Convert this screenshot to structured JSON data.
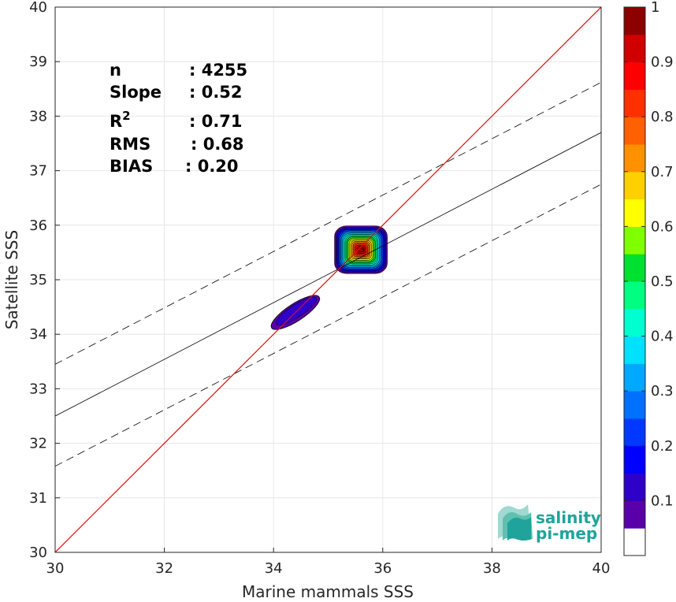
{
  "chart_data": {
    "type": "scatter",
    "subtype": "density-contour",
    "xlabel": "Marine mammals SSS",
    "ylabel": "Satellite SSS",
    "xlim": [
      30,
      40
    ],
    "ylim": [
      30,
      40
    ],
    "x_ticks": [
      "30",
      "32",
      "34",
      "36",
      "38",
      "40"
    ],
    "y_ticks": [
      "30",
      "31",
      "32",
      "33",
      "34",
      "35",
      "36",
      "37",
      "38",
      "39",
      "40"
    ],
    "grid": true,
    "stats": {
      "n_label": "n",
      "n_value": ": 4255",
      "slope_label": "Slope",
      "slope_value": ": 0.52",
      "r2_label_base": "R",
      "r2_label_sup": "2",
      "r2_value": ": 0.71",
      "rms_label": "RMS",
      "rms_value": ": 0.68",
      "bias_label": "BIAS",
      "bias_value": ": 0.20"
    },
    "lines": {
      "identity": {
        "x": [
          30,
          40
        ],
        "y": [
          30,
          40
        ],
        "color": "#ff0000"
      },
      "regression": {
        "x": [
          30,
          40
        ],
        "y": [
          32.5,
          37.7
        ],
        "color": "#000000"
      },
      "upper_bound": {
        "x": [
          30,
          40
        ],
        "y": [
          33.45,
          38.62
        ],
        "color": "#000000",
        "style": "dashed"
      },
      "lower_bound": {
        "x": [
          30,
          40
        ],
        "y": [
          31.58,
          36.75
        ],
        "color": "#000000",
        "style": "dashed"
      }
    },
    "density_clusters": [
      {
        "center": [
          35.6,
          35.55
        ],
        "peak_level": 1.0
      },
      {
        "center": [
          34.4,
          34.4
        ],
        "peak_level": 0.1
      }
    ],
    "colorbar": {
      "position": "right",
      "ticks": [
        "0.1",
        "0.2",
        "0.3",
        "0.4",
        "0.5",
        "0.6",
        "0.7",
        "0.8",
        "0.9",
        "1"
      ],
      "colors": [
        "#ffffff",
        "#5a00aa",
        "#2e00c8",
        "#0000ff",
        "#0038ff",
        "#0070ff",
        "#00a8ff",
        "#00e0ff",
        "#00ffd0",
        "#00ff80",
        "#00e030",
        "#80ff00",
        "#ffff00",
        "#ffd000",
        "#ff9000",
        "#ff6000",
        "#ff3000",
        "#ff0000",
        "#d00000",
        "#8c0000"
      ]
    }
  },
  "logo": {
    "line1": "salinity",
    "line2": "pi-mep",
    "color": "#1fa39a"
  }
}
